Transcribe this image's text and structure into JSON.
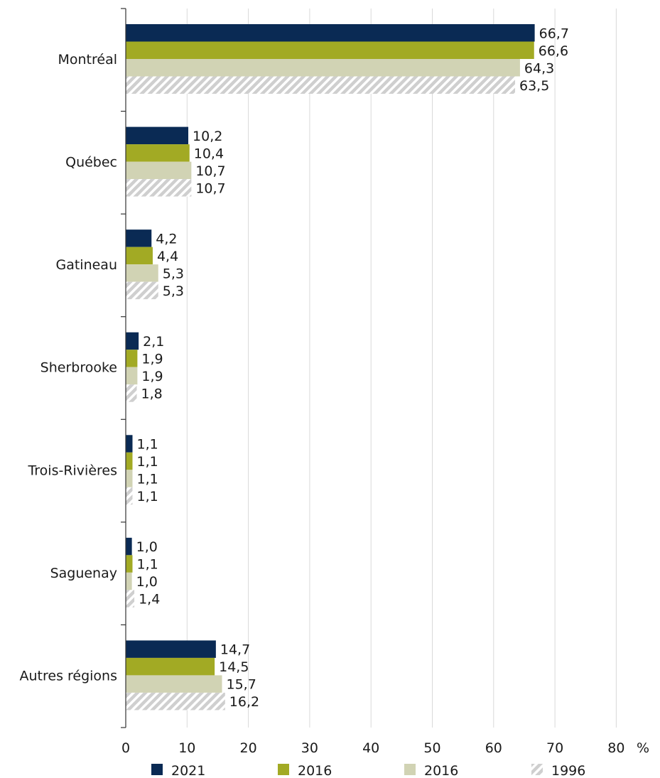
{
  "chart_data": {
    "type": "bar",
    "orientation": "horizontal",
    "categories": [
      "Montréal",
      "Québec",
      "Gatineau",
      "Sherbrooke",
      "Trois-Rivières",
      "Saguenay",
      "Autres régions"
    ],
    "series": [
      {
        "name": "2021",
        "values": [
          66.7,
          10.2,
          4.2,
          2.1,
          1.1,
          1.0,
          14.7
        ],
        "labels": [
          "66,7",
          "10,2",
          "4,2",
          "2,1",
          "1,1",
          "1,0",
          "14,7"
        ],
        "color": "#0a2a54",
        "pattern": "solid"
      },
      {
        "name": "2016",
        "values": [
          66.6,
          10.4,
          4.4,
          1.9,
          1.1,
          1.1,
          14.5
        ],
        "labels": [
          "66,6",
          "10,4",
          "4,4",
          "1,9",
          "1,1",
          "1,1",
          "14,5"
        ],
        "color": "#a2aa24",
        "pattern": "solid"
      },
      {
        "name": "2016",
        "values": [
          64.3,
          10.7,
          5.3,
          1.9,
          1.1,
          1.0,
          15.7
        ],
        "labels": [
          "64,3",
          "10,7",
          "5,3",
          "1,9",
          "1,1",
          "1,0",
          "15,7"
        ],
        "color": "#d1d3b4",
        "pattern": "solid"
      },
      {
        "name": "1996",
        "values": [
          63.5,
          10.7,
          5.3,
          1.8,
          1.1,
          1.4,
          16.2
        ],
        "labels": [
          "63,5",
          "10,7",
          "5,3",
          "1,8",
          "1,1",
          "1,4",
          "16,2"
        ],
        "color": "#cfcfcf",
        "pattern": "hatch"
      }
    ],
    "x_ticks": [
      0,
      10,
      20,
      30,
      40,
      50,
      60,
      70,
      80
    ],
    "xlim": [
      0,
      80
    ],
    "x_unit": "%",
    "title": "",
    "xlabel": "",
    "ylabel": "",
    "grid": true,
    "legend_position": "bottom"
  }
}
